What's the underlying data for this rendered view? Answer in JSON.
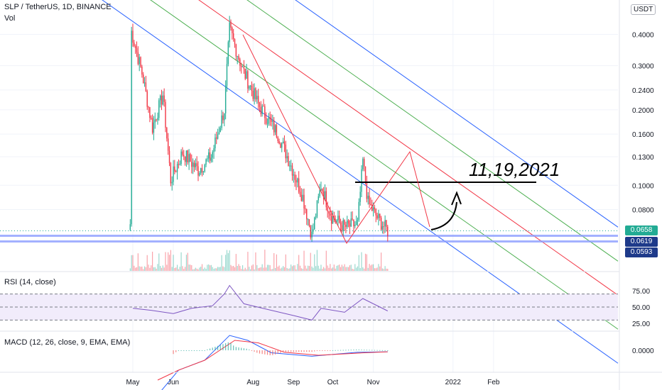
{
  "chart_data": [
    {
      "type": "line",
      "title": "SLP / TetherUS, 1D, BINANCE",
      "subtitle": "Vol",
      "price_scale": "log",
      "y_ticks": [
        "0.4000",
        "0.3000",
        "0.2400",
        "0.2000",
        "0.1600",
        "0.1300",
        "0.1000",
        "0.0800"
      ],
      "x_ticks": [
        "May",
        "Jun",
        "Aug",
        "Sep",
        "Oct",
        "Nov",
        "2022",
        "Feb"
      ],
      "price_path": [
        {
          "x": "2021-04-29",
          "y": 0.07
        },
        {
          "x": "2021-04-30",
          "y": 0.41
        },
        {
          "x": "2021-05-08",
          "y": 0.28
        },
        {
          "x": "2021-05-16",
          "y": 0.17
        },
        {
          "x": "2021-05-24",
          "y": 0.23
        },
        {
          "x": "2021-05-30",
          "y": 0.105
        },
        {
          "x": "2021-06-08",
          "y": 0.135
        },
        {
          "x": "2021-06-20",
          "y": 0.115
        },
        {
          "x": "2021-06-30",
          "y": 0.13
        },
        {
          "x": "2021-07-10",
          "y": 0.2
        },
        {
          "x": "2021-07-14",
          "y": 0.42
        },
        {
          "x": "2021-07-24",
          "y": 0.29
        },
        {
          "x": "2021-08-05",
          "y": 0.21
        },
        {
          "x": "2021-08-20",
          "y": 0.16
        },
        {
          "x": "2021-08-30",
          "y": 0.12
        },
        {
          "x": "2021-09-08",
          "y": 0.09
        },
        {
          "x": "2021-09-15",
          "y": 0.063
        },
        {
          "x": "2021-09-22",
          "y": 0.1
        },
        {
          "x": "2021-09-30",
          "y": 0.075
        },
        {
          "x": "2021-10-10",
          "y": 0.068
        },
        {
          "x": "2021-10-20",
          "y": 0.07
        },
        {
          "x": "2021-10-24",
          "y": 0.125
        },
        {
          "x": "2021-10-28",
          "y": 0.085
        },
        {
          "x": "2021-11-05",
          "y": 0.073
        },
        {
          "x": "2021-11-12",
          "y": 0.0658
        }
      ],
      "drawn_lines": [
        {
          "name": "channel-upper",
          "color": "#2962ff"
        },
        {
          "name": "channel-mid-upper",
          "color": "#4caf50"
        },
        {
          "name": "channel-median",
          "color": "#f23645"
        },
        {
          "name": "channel-mid-lower",
          "color": "#4caf50"
        },
        {
          "name": "channel-lower",
          "color": "#2962ff"
        },
        {
          "name": "resistance",
          "color": "#000000",
          "price": 0.1
        }
      ],
      "price_labels": [
        {
          "value": "0.0658",
          "color": "#22ab94"
        },
        {
          "value": "0.0619",
          "color": "#1e3a8a"
        },
        {
          "value": "0.0593",
          "color": "#1e3a8a"
        }
      ],
      "annotation": "11,19,2021",
      "currency": "USDT"
    },
    {
      "type": "line",
      "title": "RSI (14, close)",
      "y_ticks": [
        "75.00",
        "50.00",
        "25.00"
      ],
      "bands": [
        70,
        30
      ],
      "series": [
        {
          "values": [
            {
              "x": "2021-05-01",
              "y": 48
            },
            {
              "x": "2021-05-15",
              "y": 45
            },
            {
              "x": "2021-06-01",
              "y": 40
            },
            {
              "x": "2021-06-15",
              "y": 48
            },
            {
              "x": "2021-07-01",
              "y": 52
            },
            {
              "x": "2021-07-10",
              "y": 70
            },
            {
              "x": "2021-07-14",
              "y": 83
            },
            {
              "x": "2021-07-25",
              "y": 55
            },
            {
              "x": "2021-08-15",
              "y": 45
            },
            {
              "x": "2021-09-01",
              "y": 37
            },
            {
              "x": "2021-09-15",
              "y": 30
            },
            {
              "x": "2021-09-22",
              "y": 48
            },
            {
              "x": "2021-10-10",
              "y": 42
            },
            {
              "x": "2021-10-24",
              "y": 63
            },
            {
              "x": "2021-11-12",
              "y": 44
            }
          ]
        }
      ]
    },
    {
      "type": "line",
      "title": "MACD (12, 26, close, 9, EMA, EMA)",
      "y_ticks": [
        "0.0000"
      ],
      "series": [
        {
          "values": [
            {
              "x": "2021-05-20",
              "y": -0.09
            },
            {
              "x": "2021-06-05",
              "y": -0.04
            },
            {
              "x": "2021-06-25",
              "y": -0.02
            },
            {
              "x": "2021-07-14",
              "y": 0.03
            },
            {
              "x": "2021-07-28",
              "y": 0.02
            },
            {
              "x": "2021-08-15",
              "y": -0.005
            },
            {
              "x": "2021-09-15",
              "y": -0.012
            },
            {
              "x": "2021-10-20",
              "y": -0.004
            },
            {
              "x": "2021-11-12",
              "y": -0.003
            }
          ]
        },
        {
          "values": [
            {
              "x": "2021-05-20",
              "y": -0.06
            },
            {
              "x": "2021-06-05",
              "y": -0.04
            },
            {
              "x": "2021-06-25",
              "y": -0.02
            },
            {
              "x": "2021-07-18",
              "y": 0.02
            },
            {
              "x": "2021-08-05",
              "y": 0.015
            },
            {
              "x": "2021-08-25",
              "y": -0.004
            },
            {
              "x": "2021-09-20",
              "y": -0.01
            },
            {
              "x": "2021-10-25",
              "y": -0.005
            },
            {
              "x": "2021-11-12",
              "y": -0.003
            }
          ]
        }
      ]
    }
  ],
  "colors": {
    "up": "#22ab94",
    "down": "#f23645",
    "rsi": "#7e57c2",
    "rsi_band_fill": "#f1ecfb",
    "macd": "#2962ff",
    "signal": "#f23645",
    "grid": "#f0f3fa"
  }
}
